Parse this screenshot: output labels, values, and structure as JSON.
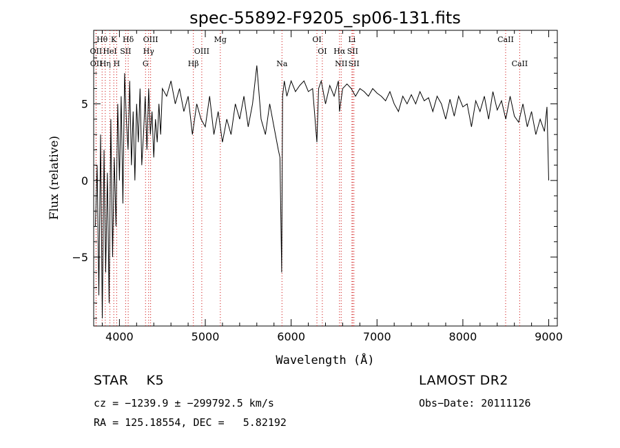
{
  "chart_data": {
    "type": "line",
    "title": "spec-55892-F9205_sp06-131.fits",
    "xlabel": "Wavelength (Å)",
    "ylabel": "Flux (relative)",
    "xlim": [
      3700,
      9100
    ],
    "ylim": [
      -9.5,
      9.8
    ],
    "x_ticks": [
      4000,
      5000,
      6000,
      7000,
      8000,
      9000
    ],
    "y_ticks": [
      -5,
      0,
      5
    ],
    "grid": false,
    "line_color": "#000000",
    "marker_color": "#cc0000",
    "series": [
      {
        "x": [
          3720,
          3740,
          3760,
          3780,
          3800,
          3820,
          3840,
          3860,
          3880,
          3900,
          3920,
          3940,
          3960,
          3980,
          4000,
          4020,
          4040,
          4060,
          4080,
          4100,
          4120,
          4140,
          4160,
          4180,
          4200,
          4220,
          4240,
          4260,
          4280,
          4300,
          4320,
          4340,
          4360,
          4380,
          4400,
          4420,
          4440,
          4460,
          4480,
          4500,
          4550,
          4600,
          4650,
          4700,
          4750,
          4800,
          4850,
          4900,
          4950,
          5000,
          5050,
          5100,
          5150,
          5200,
          5250,
          5300,
          5350,
          5400,
          5450,
          5500,
          5550,
          5600,
          5650,
          5700,
          5750,
          5800,
          5850,
          5870,
          5890,
          5900,
          5920,
          5950,
          6000,
          6050,
          6100,
          6150,
          6200,
          6250,
          6300,
          6320,
          6350,
          6400,
          6450,
          6500,
          6550,
          6563,
          6600,
          6650,
          6700,
          6750,
          6800,
          6850,
          6900,
          6950,
          7000,
          7050,
          7100,
          7150,
          7200,
          7250,
          7300,
          7350,
          7400,
          7450,
          7500,
          7550,
          7600,
          7650,
          7700,
          7750,
          7800,
          7850,
          7900,
          7950,
          8000,
          8050,
          8100,
          8150,
          8200,
          8250,
          8300,
          8350,
          8400,
          8450,
          8500,
          8550,
          8600,
          8650,
          8700,
          8750,
          8800,
          8850,
          8900,
          8950,
          8980,
          9000
        ],
        "y": [
          -3.0,
          1.0,
          -7.5,
          3.0,
          -9.0,
          2.0,
          -6.0,
          0.5,
          -8.0,
          4.0,
          -5.0,
          1.5,
          -3.0,
          5.0,
          0.0,
          5.5,
          -1.5,
          7.0,
          4.0,
          2.0,
          6.5,
          1.0,
          4.5,
          0.0,
          5.0,
          2.5,
          6.0,
          1.0,
          3.0,
          5.5,
          2.0,
          6.0,
          3.0,
          4.5,
          1.5,
          4.0,
          2.5,
          5.0,
          3.0,
          6.0,
          5.5,
          6.5,
          5.0,
          6.0,
          4.5,
          5.5,
          3.0,
          5.0,
          4.0,
          3.5,
          5.5,
          3.0,
          4.5,
          2.5,
          4.0,
          3.0,
          5.0,
          4.0,
          5.5,
          3.5,
          5.0,
          7.5,
          4.0,
          3.0,
          5.0,
          3.5,
          2.0,
          1.5,
          -6.0,
          5.5,
          6.5,
          5.5,
          6.5,
          5.8,
          6.2,
          6.5,
          5.8,
          6.0,
          2.5,
          6.0,
          6.5,
          5.0,
          6.2,
          5.5,
          6.5,
          4.5,
          6.0,
          6.3,
          6.0,
          5.5,
          6.0,
          5.8,
          5.5,
          6.0,
          5.7,
          5.5,
          5.2,
          5.8,
          5.0,
          4.5,
          5.5,
          5.0,
          5.6,
          5.0,
          5.8,
          5.2,
          5.4,
          4.5,
          5.5,
          5.0,
          4.0,
          5.3,
          4.2,
          5.5,
          4.8,
          5.0,
          3.5,
          5.2,
          4.5,
          5.5,
          4.0,
          5.8,
          4.6,
          5.2,
          4.0,
          5.5,
          4.2,
          3.8,
          5.0,
          3.5,
          4.5,
          3.0,
          4.0,
          3.2,
          4.8,
          0.0
        ]
      }
    ],
    "line_markers": [
      {
        "label": "Hθ",
        "x": 3798,
        "row": 0
      },
      {
        "label": "K",
        "x": 3934,
        "row": 0
      },
      {
        "label": "Hδ",
        "x": 4102,
        "row": 0
      },
      {
        "label": "OIII",
        "x": 4363,
        "row": 0
      },
      {
        "label": "Mg",
        "x": 5175,
        "row": 0
      },
      {
        "label": "OI",
        "x": 6300,
        "row": 0
      },
      {
        "label": "Li",
        "x": 6708,
        "row": 0
      },
      {
        "label": "CaII",
        "x": 8498,
        "row": 0
      },
      {
        "label": "OII",
        "x": 3727,
        "row": 1
      },
      {
        "label": "HeI",
        "x": 3889,
        "row": 1
      },
      {
        "label": "SII",
        "x": 4072,
        "row": 1
      },
      {
        "label": "Hγ",
        "x": 4340,
        "row": 1
      },
      {
        "label": "OIII",
        "x": 4959,
        "row": 1
      },
      {
        "label": "OI",
        "x": 6363,
        "row": 1
      },
      {
        "label": "Hα",
        "x": 6563,
        "row": 1
      },
      {
        "label": "SII",
        "x": 6716,
        "row": 1
      },
      {
        "label": "OII",
        "x": 3729,
        "row": 2
      },
      {
        "label": "Hη",
        "x": 3835,
        "row": 2
      },
      {
        "label": "H",
        "x": 3968,
        "row": 2
      },
      {
        "label": "G",
        "x": 4304,
        "row": 2
      },
      {
        "label": "Hβ",
        "x": 4861,
        "row": 2
      },
      {
        "label": "Na",
        "x": 5893,
        "row": 2
      },
      {
        "label": "NII",
        "x": 6583,
        "row": 2
      },
      {
        "label": "SII",
        "x": 6731,
        "row": 2
      },
      {
        "label": "CaII",
        "x": 8662,
        "row": 2
      }
    ]
  },
  "footer": {
    "object": "STAR    K5",
    "survey": "LAMOST DR2",
    "cz": "cz = −1239.9 ± −299792.5 km/s",
    "obs_date": "Obs−Date: 20111126",
    "coords": "RA = 125.18554, DEC =   5.82192"
  }
}
